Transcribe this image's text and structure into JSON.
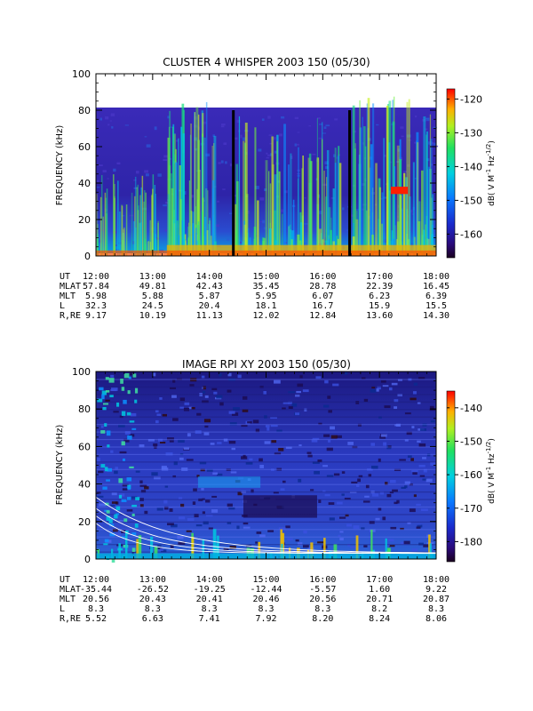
{
  "chart_data": [
    {
      "type": "heatmap",
      "title": "CLUSTER 4 WHISPER 2003 150 (05/30)",
      "ylabel": "FREQUENCY (kHz)",
      "y_ticks": [
        "0",
        "20",
        "40",
        "60",
        "80",
        "100"
      ],
      "ylim": [
        0,
        100
      ],
      "data_ylim": [
        0,
        80
      ],
      "x_ticks": [
        "12:00",
        "13:00",
        "14:00",
        "15:00",
        "16:00",
        "17:00",
        "18:00"
      ],
      "colorbar": {
        "label": "dB( V M⁻¹ Hz⁻¹ᐟ²)",
        "label_parts": [
          "dB( V M",
          "-1",
          " Hz",
          "-1/2",
          ")"
        ],
        "ticks": [
          "-120",
          "-130",
          "-140",
          "-150",
          "-160"
        ],
        "range": [
          -167,
          -117
        ]
      },
      "ephemeris": {
        "labels": [
          "UT",
          "MLAT",
          "MLT",
          "L",
          "R,RE"
        ],
        "rows": [
          [
            "12:00",
            "13:00",
            "14:00",
            "15:00",
            "16:00",
            "17:00",
            "18:00"
          ],
          [
            "57.84",
            "49.81",
            "42.43",
            "35.45",
            "28.78",
            "22.39",
            "16.45"
          ],
          [
            "5.98",
            "5.88",
            "5.87",
            "5.95",
            "6.07",
            "6.23",
            "6.39"
          ],
          [
            "32.3",
            "24.5",
            "20.4",
            "18.1",
            "16.7",
            "15.9",
            "15.5"
          ],
          [
            "9.17",
            "10.19",
            "11.13",
            "12.02",
            "12.84",
            "13.60",
            "14.30"
          ]
        ]
      }
    },
    {
      "type": "heatmap",
      "title": "IMAGE RPI XY 2003 150 (05/30)",
      "ylabel": "FREQUENCY (kHz)",
      "y_ticks": [
        "0",
        "20",
        "40",
        "60",
        "80",
        "100"
      ],
      "ylim": [
        0,
        100
      ],
      "x_ticks": [
        "12:00",
        "13:00",
        "14:00",
        "15:00",
        "16:00",
        "17:00",
        "18:00"
      ],
      "colorbar": {
        "label_parts": [
          "dB( V M",
          "-1",
          " Hz",
          "-1/2",
          ")"
        ],
        "ticks": [
          "-140",
          "-150",
          "-160",
          "-170",
          "-180"
        ],
        "range": [
          -186,
          -135
        ]
      },
      "ephemeris": {
        "labels": [
          "UT",
          "MLAT",
          "MLT",
          "L",
          "R,RE"
        ],
        "rows": [
          [
            "12:00",
            "13:00",
            "14:00",
            "15:00",
            "16:00",
            "17:00",
            "18:00"
          ],
          [
            "-35.44",
            "-26.52",
            "-19.25",
            "-12.44",
            "-5.57",
            "1.60",
            "9.22"
          ],
          [
            "20.56",
            "20.43",
            "20.41",
            "20.46",
            "20.56",
            "20.71",
            "20.87"
          ],
          [
            "8.3",
            "8.3",
            "8.3",
            "8.3",
            "8.3",
            "8.2",
            "8.3"
          ],
          [
            "5.52",
            "6.63",
            "7.41",
            "7.92",
            "8.20",
            "8.24",
            "8.06"
          ]
        ]
      }
    }
  ]
}
